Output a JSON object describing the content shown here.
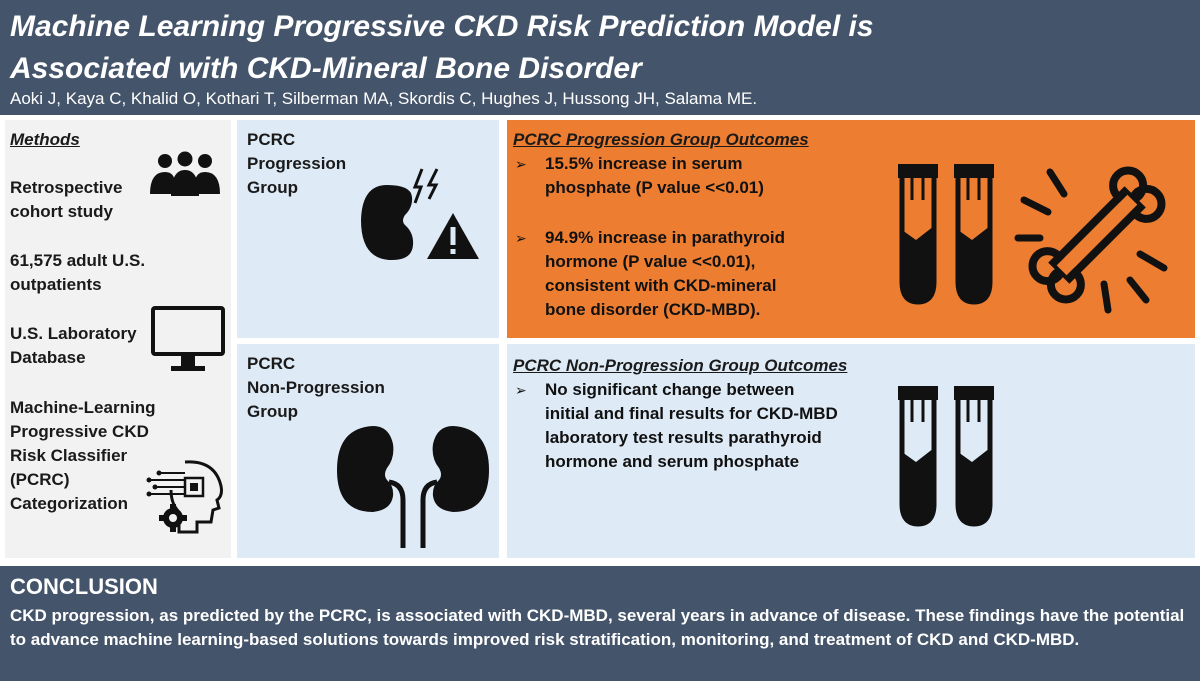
{
  "header": {
    "title_line1": "Machine Learning Progressive CKD Risk Prediction Model is",
    "title_line2": "Associated with CKD-Mineral Bone Disorder",
    "authors": "Aoki J, Kaya C, Khalid O, Kothari T, Silberman MA, Skordis C, Hughes J, Hussong JH, Salama ME."
  },
  "methods": {
    "heading": "Methods",
    "items": [
      {
        "lines": [
          "Retrospective",
          "cohort study"
        ],
        "icon": "people-group-icon"
      },
      {
        "lines": [
          "61,575 adult U.S.",
          "outpatients"
        ],
        "icon": ""
      },
      {
        "lines": [
          "U.S. Laboratory",
          "Database"
        ],
        "icon": "computer-monitor-icon"
      },
      {
        "lines": [
          "Machine-Learning",
          "Progressive CKD",
          "Risk Classifier",
          "(PCRC)",
          "Categorization"
        ],
        "icon": "ai-head-gear-icon"
      }
    ]
  },
  "progression_label": {
    "lines": [
      "PCRC",
      "Progression",
      "Group"
    ],
    "icon": "damaged-kidney-warning-icon"
  },
  "nonprogression_label": {
    "lines": [
      "PCRC",
      "Non-Progression",
      "Group"
    ],
    "icon": "kidneys-icon"
  },
  "progression_outcomes": {
    "heading": "PCRC Progression Group Outcomes",
    "bullets": [
      {
        "lines": [
          "15.5% increase in serum",
          "phosphate (P value <<0.01)"
        ]
      },
      {
        "lines": [
          "94.9% increase in parathyroid",
          "hormone (P value <<0.01),",
          "consistent with CKD-mineral",
          "bone disorder (CKD-MBD)."
        ]
      }
    ],
    "icons": [
      "blood-tubes-icon",
      "broken-bone-icon"
    ]
  },
  "nonprogression_outcomes": {
    "heading": "PCRC Non-Progression Group Outcomes",
    "bullets": [
      {
        "lines": [
          "No significant change between",
          "initial and final results for CKD-MBD",
          "laboratory test results parathyroid",
          "hormone and serum phosphate"
        ]
      }
    ],
    "icons": [
      "blood-tubes-icon"
    ]
  },
  "conclusion": {
    "heading": "CONCLUSION",
    "body": "CKD progression, as predicted by the PCRC, is associated with CKD-MBD, several years in advance of disease. These findings have the potential to advance machine learning-based solutions towards improved risk stratification, monitoring, and treatment of CKD and CKD-MBD."
  },
  "colors": {
    "header_bg": "#44546a",
    "orange": "#ed7d31",
    "light_blue": "#deebf7",
    "light_gray": "#f2f2f2"
  }
}
